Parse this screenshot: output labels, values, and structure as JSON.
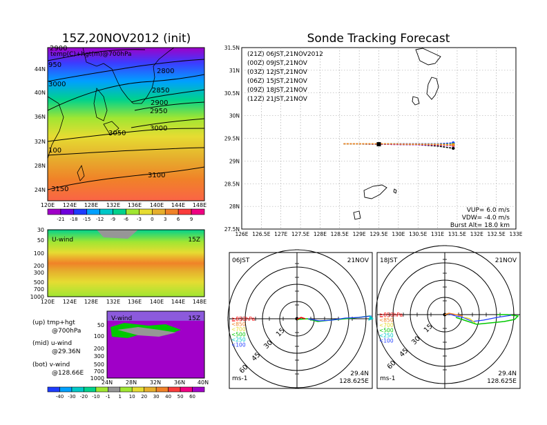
{
  "left_panel": {
    "title": "15Z,20NOV2012 (init)",
    "map_label": "temp(C)+hgt(m)@700hPa",
    "lat_ticks": [
      "44N",
      "40N",
      "36N",
      "32N",
      "28N",
      "24N"
    ],
    "lon_ticks": [
      "120E",
      "124E",
      "128E",
      "132E",
      "136E",
      "140E",
      "144E",
      "148E"
    ],
    "contours": [
      "2900",
      "950",
      "3000",
      "2800",
      "2850",
      "2900",
      "2950",
      "3000",
      "3050",
      "100",
      "3100",
      "3150"
    ],
    "temp_colorbar": [
      "-21",
      "-18",
      "-15",
      "-12",
      "-9",
      "-6",
      "-3",
      "0",
      "3",
      "6",
      "9"
    ],
    "temp_colors": [
      "#a000c8",
      "#6e00dc",
      "#1e3cff",
      "#00a0ff",
      "#00c8c8",
      "#00d28c",
      "#a0e632",
      "#e6dc32",
      "#e6af2d",
      "#f08228",
      "#fa3c3c",
      "#f00082"
    ],
    "uwind_label": "U-wind",
    "uwind_time": "15Z",
    "uwind_levels": [
      "30",
      "50",
      "100",
      "200",
      "300",
      "500",
      "700",
      "1000"
    ],
    "vwind_label": "V-wind",
    "vwind_time": "15Z",
    "vwind_levels": [
      "50",
      "100",
      "200",
      "300",
      "500",
      "700",
      "1000"
    ],
    "vwind_lat_ticks": [
      "24N",
      "28N",
      "32N",
      "36N",
      "40N"
    ],
    "legend_lines": [
      "(up) tmp+hgt",
      "@700hPa",
      "(mid) u-wind",
      "@29.36N",
      "(bot) v-wind",
      "@128.66E"
    ],
    "wind_colorbar": [
      "-40",
      "-30",
      "-20",
      "-10",
      "-1",
      "1",
      "10",
      "20",
      "30",
      "40",
      "50",
      "60"
    ],
    "wind_colors": [
      "#1e3cff",
      "#00a0ff",
      "#00c8c8",
      "#00d28c",
      "#a0e632",
      "#969696",
      "#a0e632",
      "#e6dc32",
      "#e6af2d",
      "#f08228",
      "#fa3c3c",
      "#f00082",
      "#a000c8"
    ]
  },
  "right_panel": {
    "title": "Sonde Tracking Forecast",
    "legend": [
      {
        "text": "(21Z) 06JST,21NOV2012",
        "color": "#000000"
      },
      {
        "text": "(00Z) 09JST,21NOV",
        "color": "#a000c8"
      },
      {
        "text": "(03Z) 12JST,21NOV",
        "color": "#1e3cff"
      },
      {
        "text": "(06Z) 15JST,21NOV",
        "color": "#00b400"
      },
      {
        "text": "(09Z) 18JST,21NOV",
        "color": "#e6af2d"
      },
      {
        "text": "(12Z) 21JST,21NOV",
        "color": "#f08228"
      }
    ],
    "params": [
      "VUP= 6.0 m/s",
      "VDW= -4.0 m/s",
      "Burst Alt= 18.0 km"
    ],
    "polar1": {
      "time": "06JST",
      "date": "21NOV",
      "coord1": "29.4N",
      "coord2": "128.625E",
      "unit": "ms-1"
    },
    "polar2": {
      "time": "18JST",
      "date": "21NOV",
      "coord1": "29.4N",
      "coord2": "128.625E",
      "unit": "ms-1"
    },
    "ring_labels": [
      "15",
      "30",
      "45",
      "60"
    ],
    "pressure_legend": [
      {
        "text": "≧850hPa",
        "color": "#fa0000"
      },
      {
        "text": "<850",
        "color": "#f08228"
      },
      {
        "text": "<700",
        "color": "#e6dc32"
      },
      {
        "text": "<500",
        "color": "#00c800"
      },
      {
        "text": "<250",
        "color": "#00c8c8"
      },
      {
        "text": "<100",
        "color": "#1e3cff"
      }
    ]
  },
  "chart_data": [
    {
      "type": "line",
      "title": "Sonde Tracking Forecast",
      "xlim": [
        126,
        133
      ],
      "ylim": [
        27.5,
        31.5
      ],
      "x_ticks": [
        "126E",
        "126.5E",
        "127E",
        "127.5E",
        "128E",
        "128.5E",
        "129E",
        "129.5E",
        "130E",
        "130.5E",
        "131E",
        "131.5E",
        "132E",
        "132.5E",
        "133E"
      ],
      "y_ticks": [
        "27.5N",
        "28N",
        "28.5N",
        "29N",
        "29.5N",
        "30N",
        "30.5N",
        "31N",
        "31.5N"
      ],
      "grid": true,
      "series": [
        {
          "name": "(21Z) 06JST,21NOV2012",
          "color": "#000000",
          "x": [
            128.6,
            129.5,
            130.5,
            131.0,
            131.4
          ],
          "y": [
            29.38,
            29.37,
            29.36,
            29.33,
            29.28
          ]
        },
        {
          "name": "(00Z) 09JST,21NOV",
          "color": "#a000c8",
          "x": [
            128.6,
            129.5,
            130.5,
            131.0,
            131.4
          ],
          "y": [
            29.38,
            29.37,
            29.36,
            29.35,
            29.34
          ]
        },
        {
          "name": "(03Z) 12JST,21NOV",
          "color": "#1e3cff",
          "x": [
            128.6,
            129.5,
            130.5,
            131.0,
            131.4
          ],
          "y": [
            29.38,
            29.38,
            29.38,
            29.38,
            29.4
          ]
        },
        {
          "name": "(06Z) 15JST,21NOV",
          "color": "#00b400",
          "x": [
            128.6,
            129.5,
            130.5,
            131.0,
            131.4
          ],
          "y": [
            29.38,
            29.38,
            29.37,
            29.37,
            29.37
          ]
        },
        {
          "name": "(09Z) 18JST,21NOV",
          "color": "#e6af2d",
          "x": [
            128.6,
            129.5,
            130.5,
            131.0,
            131.4
          ],
          "y": [
            29.38,
            29.38,
            29.37,
            29.37,
            29.36
          ]
        },
        {
          "name": "(12Z) 21JST,21NOV",
          "color": "#f08228",
          "x": [
            128.6,
            129.5,
            130.5,
            131.0,
            131.4
          ],
          "y": [
            29.38,
            29.38,
            29.37,
            29.36,
            29.35
          ]
        }
      ]
    }
  ]
}
